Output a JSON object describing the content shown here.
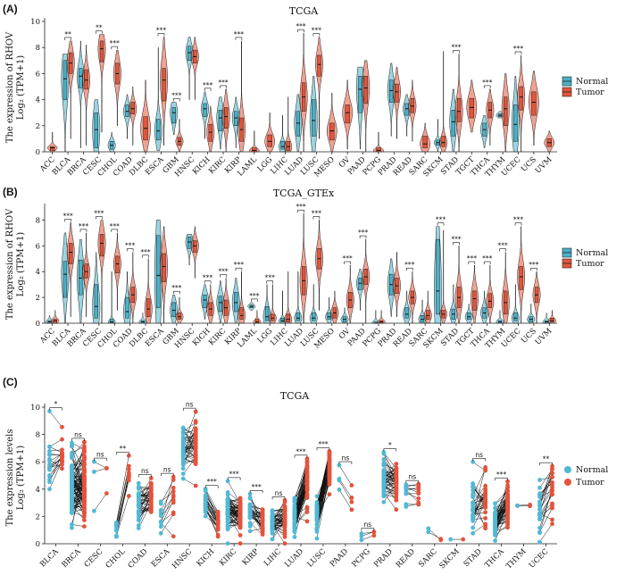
{
  "colors": {
    "normal": "#49b2c8",
    "tumor": "#e4553a",
    "normal_dot": "#51b8d6",
    "tumor_dot": "#e4533c"
  },
  "legend": {
    "normal": "Normal",
    "tumor": "Tumor"
  },
  "panels": [
    {
      "letter": "(A)",
      "title": "TCGA",
      "ylabel_line1": "The expression of RHOV",
      "ylabel_line2": "Log₂ (TPM+1)",
      "ylim": [
        0,
        10
      ],
      "yticks": [
        "0",
        "2",
        "4",
        "6",
        "8",
        "10"
      ]
    },
    {
      "letter": "(B)",
      "title": "TCGA_GTEx",
      "ylabel_line1": "The expression of RHOV",
      "ylabel_line2": "Log₂ (TPM+1)",
      "ylim": [
        0,
        9
      ],
      "yticks": [
        "0",
        "2",
        "4",
        "6",
        "8"
      ]
    },
    {
      "letter": "(C)",
      "title": "TCGA",
      "ylabel_line1": "The expression levels",
      "ylabel_line2": "Log₂ (TPM+1)",
      "ylim": [
        0,
        10
      ],
      "yticks": [
        "0",
        "2",
        "4",
        "6",
        "8",
        "10"
      ]
    }
  ],
  "chart_data": [
    {
      "type": "violin",
      "title": "TCGA",
      "ylabel": "The expression of RHOV Log2 (TPM+1)",
      "ylim": [
        0,
        10
      ],
      "legend_position": "right",
      "categories": [
        "ACC",
        "BLCA",
        "BRCA",
        "CESC",
        "CHOL",
        "COAD",
        "DLBC",
        "ESCA",
        "GBM",
        "HNSC",
        "KICH",
        "KIRC",
        "KIRP",
        "LAML",
        "LGG",
        "LIHC",
        "LUAD",
        "LUSC",
        "MESO",
        "OV",
        "PAAD",
        "PCPG",
        "PRAD",
        "READ",
        "SARC",
        "SKCM",
        "STAD",
        "TGCT",
        "THCA",
        "THYM",
        "UCEC",
        "UCS",
        "UVM"
      ],
      "significance": [
        "",
        "**",
        "",
        "**",
        "***",
        "",
        "",
        "***",
        "***",
        "",
        "***",
        "***",
        "***",
        "",
        "",
        "",
        "***",
        "***",
        "",
        "",
        "",
        "",
        "",
        "",
        "",
        "",
        "***",
        "",
        "***",
        "",
        "***",
        "",
        ""
      ],
      "series": [
        {
          "name": "Normal",
          "median": [
            null,
            5.6,
            5.8,
            1.7,
            0.5,
            3.1,
            null,
            1.6,
            3.0,
            7.6,
            3.3,
            2.6,
            2.6,
            null,
            null,
            0.4,
            2.2,
            2.4,
            null,
            null,
            4.8,
            null,
            4.7,
            3.3,
            null,
            0.7,
            2.3,
            null,
            1.7,
            2.8,
            2.1,
            null,
            null
          ],
          "q1": [
            null,
            4.0,
            4.9,
            0.3,
            0.2,
            2.7,
            null,
            0.9,
            2.2,
            7.0,
            2.7,
            1.6,
            2.0,
            null,
            null,
            0.2,
            1.2,
            1.2,
            null,
            null,
            3.0,
            null,
            3.8,
            2.8,
            null,
            0.5,
            1.2,
            null,
            1.2,
            2.7,
            0.8,
            null,
            null
          ],
          "q3": [
            null,
            7.0,
            6.4,
            3.0,
            0.8,
            3.6,
            null,
            2.5,
            3.4,
            8.1,
            3.7,
            3.2,
            3.1,
            null,
            null,
            0.8,
            3.1,
            4.0,
            null,
            null,
            5.8,
            null,
            5.5,
            3.7,
            null,
            0.9,
            3.2,
            null,
            2.2,
            2.9,
            3.6,
            null,
            null
          ],
          "min": [
            null,
            0.0,
            0.3,
            0.0,
            0.0,
            1.0,
            null,
            0.1,
            1.3,
            4.0,
            1.0,
            0.2,
            0.3,
            null,
            null,
            0.0,
            0.0,
            0.0,
            null,
            null,
            0.2,
            null,
            1.2,
            1.2,
            null,
            0.0,
            0.0,
            null,
            0.3,
            2.6,
            0.0,
            null,
            null
          ],
          "max": [
            null,
            7.5,
            8.5,
            4.0,
            1.5,
            4.4,
            null,
            8.0,
            3.8,
            8.8,
            4.6,
            4.2,
            4.2,
            null,
            null,
            2.8,
            4.4,
            5.8,
            null,
            null,
            6.5,
            null,
            6.8,
            4.4,
            null,
            2.5,
            4.8,
            null,
            2.8,
            3.1,
            5.8,
            null,
            null
          ]
        },
        {
          "name": "Tumor",
          "median": [
            0.3,
            6.8,
            5.5,
            7.9,
            6.0,
            3.3,
            1.8,
            5.5,
            0.8,
            7.3,
            1.5,
            2.7,
            1.7,
            0.1,
            0.8,
            0.4,
            4.2,
            6.7,
            1.6,
            3.0,
            4.9,
            0.1,
            4.6,
            3.5,
            0.6,
            0.7,
            3.1,
            3.4,
            3.2,
            3.3,
            4.2,
            3.8,
            0.7
          ],
          "q1": [
            0.1,
            6.0,
            4.8,
            6.9,
            5.2,
            2.9,
            0.9,
            3.9,
            0.5,
            6.8,
            0.8,
            1.8,
            0.8,
            0.0,
            0.4,
            0.1,
            3.1,
            5.8,
            0.9,
            2.2,
            3.7,
            0.0,
            3.8,
            3.0,
            0.3,
            0.4,
            2.3,
            2.6,
            2.6,
            2.0,
            3.2,
            2.8,
            0.4
          ],
          "q3": [
            0.4,
            7.6,
            6.3,
            8.5,
            6.8,
            3.8,
            2.7,
            6.4,
            1.1,
            7.8,
            2.1,
            3.4,
            2.6,
            0.3,
            1.3,
            0.8,
            5.3,
            7.4,
            2.2,
            3.6,
            5.8,
            0.3,
            5.2,
            4.1,
            1.2,
            1.2,
            4.1,
            4.1,
            3.8,
            4.2,
            5.0,
            4.6,
            1.0
          ],
          "min": [
            0.0,
            1.0,
            0.5,
            1.5,
            2.0,
            0.5,
            0.0,
            0.5,
            0.0,
            4.0,
            0.0,
            0.0,
            0.0,
            0.0,
            0.0,
            0.0,
            0.0,
            1.0,
            0.0,
            0.2,
            0.0,
            0.0,
            1.0,
            0.8,
            0.0,
            0.0,
            0.0,
            1.5,
            0.5,
            0.0,
            0.0,
            0.5,
            0.0
          ],
          "max": [
            1.5,
            8.5,
            8.2,
            9.0,
            7.8,
            5.0,
            5.5,
            8.8,
            2.5,
            8.8,
            3.5,
            4.8,
            8.5,
            1.6,
            3.0,
            4.2,
            9.1,
            8.8,
            4.5,
            5.5,
            7.0,
            1.5,
            6.5,
            5.5,
            2.2,
            7.7,
            7.5,
            5.5,
            4.8,
            6.0,
            7.4,
            6.2,
            1.6
          ]
        }
      ]
    },
    {
      "type": "violin",
      "title": "TCGA_GTEx",
      "ylabel": "The expression of RHOV Log2 (TPM+1)",
      "ylim": [
        0,
        9
      ],
      "legend_position": "right",
      "categories": [
        "ACC",
        "BLCA",
        "BRCA",
        "CESC",
        "CHOL",
        "COAD",
        "DLBC",
        "ESCA",
        "GBM",
        "HNSC",
        "KICH",
        "KIRC",
        "KIRP",
        "LAML",
        "LGG",
        "LIHC",
        "LUAD",
        "LUSC",
        "MESO",
        "OV",
        "PAAD",
        "PCPG",
        "PRAD",
        "READ",
        "SARC",
        "SKCM",
        "STAD",
        "TGCT",
        "THCA",
        "THYM",
        "UCEC",
        "UCS",
        "UVM"
      ],
      "significance": [
        "",
        "***",
        "***",
        "***",
        "***",
        "***",
        "***",
        "",
        "***",
        "",
        "***",
        "***",
        "***",
        "***",
        "***",
        "",
        "***",
        "***",
        "",
        "***",
        "***",
        "",
        "",
        "***",
        "",
        "***",
        "***",
        "***",
        "***",
        "***",
        "***",
        "***",
        ""
      ],
      "series": [
        {
          "name": "Normal",
          "median": [
            0.1,
            3.8,
            3.5,
            1.3,
            0.1,
            0.9,
            0.1,
            3.7,
            1.0,
            6.3,
            1.8,
            1.6,
            1.6,
            1.3,
            0.5,
            0.2,
            0.4,
            0.4,
            0.5,
            0.3,
            3.1,
            0.0,
            3.0,
            0.7,
            0.3,
            2.5,
            0.7,
            0.5,
            0.8,
            0.1,
            0.4,
            0.3,
            0.1
          ],
          "q1": [
            0.0,
            2.0,
            2.2,
            0.4,
            0.0,
            0.4,
            0.0,
            1.2,
            0.5,
            5.8,
            1.2,
            0.9,
            0.9,
            1.2,
            0.2,
            0.1,
            0.2,
            0.2,
            0.3,
            0.1,
            2.6,
            0.0,
            2.2,
            0.4,
            0.1,
            0.7,
            0.3,
            0.3,
            0.4,
            0.0,
            0.2,
            0.1,
            0.0
          ],
          "q3": [
            0.2,
            4.8,
            4.9,
            3.0,
            0.3,
            2.0,
            0.2,
            6.8,
            1.6,
            6.7,
            2.2,
            2.1,
            2.4,
            1.4,
            1.3,
            0.4,
            0.8,
            0.8,
            0.8,
            0.5,
            3.5,
            0.1,
            3.8,
            1.2,
            0.6,
            6.5,
            1.1,
            0.8,
            1.2,
            0.2,
            0.8,
            0.5,
            0.2
          ],
          "min": [
            0.0,
            0.0,
            0.0,
            0.0,
            0.0,
            0.0,
            0.0,
            0.0,
            0.0,
            4.5,
            0.3,
            0.0,
            0.0,
            1.0,
            0.0,
            0.0,
            0.0,
            0.0,
            0.0,
            0.0,
            1.0,
            0.0,
            0.5,
            0.0,
            0.0,
            0.0,
            0.0,
            0.0,
            0.0,
            0.0,
            0.0,
            0.0,
            0.0
          ],
          "max": [
            0.6,
            7.0,
            6.5,
            5.5,
            4.0,
            4.0,
            0.8,
            8.0,
            2.2,
            6.9,
            3.0,
            3.3,
            3.5,
            1.6,
            3.0,
            2.5,
            4.0,
            3.0,
            2.0,
            1.2,
            4.2,
            1.0,
            5.0,
            2.5,
            1.8,
            7.5,
            3.0,
            1.5,
            2.5,
            1.0,
            3.0,
            1.5,
            0.8
          ]
        },
        {
          "name": "Tumor",
          "median": [
            0.2,
            5.5,
            4.0,
            6.2,
            4.6,
            2.2,
            1.1,
            4.4,
            0.5,
            6.0,
            1.1,
            1.2,
            0.6,
            0.1,
            0.4,
            0.3,
            3.3,
            5.0,
            0.8,
            1.8,
            3.6,
            0.1,
            2.9,
            2.0,
            0.6,
            0.7,
            2.0,
            1.9,
            1.7,
            1.6,
            3.6,
            2.2,
            0.2
          ],
          "q1": [
            0.0,
            4.6,
            3.5,
            5.2,
            3.9,
            1.6,
            0.5,
            3.2,
            0.3,
            5.5,
            0.6,
            0.6,
            0.3,
            0.0,
            0.2,
            0.1,
            2.2,
            4.2,
            0.4,
            1.2,
            3.0,
            0.0,
            2.3,
            1.5,
            0.3,
            0.4,
            1.2,
            1.0,
            1.2,
            0.7,
            2.6,
            1.6,
            0.1
          ],
          "q3": [
            0.3,
            6.2,
            4.6,
            6.9,
            5.2,
            2.8,
            1.9,
            5.4,
            0.8,
            6.4,
            1.6,
            1.8,
            1.2,
            0.3,
            0.7,
            0.7,
            4.4,
            5.8,
            1.2,
            2.4,
            4.2,
            0.2,
            3.5,
            2.5,
            1.0,
            1.0,
            2.8,
            2.5,
            2.3,
            2.5,
            4.4,
            2.8,
            0.4
          ],
          "min": [
            0.0,
            0.5,
            0.5,
            0.0,
            1.0,
            0.0,
            0.0,
            0.0,
            0.0,
            3.5,
            0.0,
            0.0,
            0.0,
            0.0,
            0.0,
            0.0,
            0.0,
            1.0,
            0.0,
            0.0,
            0.0,
            0.0,
            0.5,
            0.0,
            0.0,
            0.0,
            0.0,
            0.0,
            0.0,
            0.0,
            0.0,
            0.0,
            0.0
          ],
          "max": [
            1.0,
            7.8,
            7.0,
            8.0,
            7.0,
            5.5,
            5.0,
            7.5,
            2.0,
            7.5,
            3.0,
            3.5,
            4.0,
            1.0,
            3.0,
            4.0,
            8.5,
            8.0,
            2.5,
            4.5,
            6.5,
            1.0,
            5.5,
            4.0,
            2.5,
            7.2,
            6.0,
            4.5,
            4.5,
            5.5,
            7.5,
            4.0,
            1.0
          ]
        }
      ]
    },
    {
      "type": "paired_scatter",
      "title": "TCGA",
      "ylabel": "The expression levels Log2 (TPM+1)",
      "ylim": [
        0,
        10
      ],
      "legend_position": "right",
      "categories": [
        "BLCA",
        "BRCA",
        "CESC",
        "CHOL",
        "COAD",
        "ESCA",
        "HNSC",
        "KICH",
        "KIRC",
        "KIRP",
        "LIHC",
        "LUAD",
        "LUSC",
        "PAAD",
        "PCPG",
        "PRAD",
        "READ",
        "SARC",
        "SKCM",
        "STAD",
        "THCA",
        "THYM",
        "UCEC"
      ],
      "significance": [
        "*",
        "ns",
        "ns",
        "**",
        "ns",
        "ns",
        "ns",
        "***",
        "***",
        "***",
        "ns",
        "***",
        "***",
        "ns",
        "ns",
        "*",
        "ns",
        "",
        "",
        "ns",
        "***",
        "",
        "**"
      ],
      "series": [
        {
          "name": "Normal",
          "n": [
            19,
            110,
            3,
            9,
            41,
            11,
            43,
            25,
            72,
            32,
            50,
            58,
            49,
            4,
            3,
            52,
            10,
            2,
            1,
            32,
            58,
            2,
            23
          ],
          "center": [
            6.0,
            4.0,
            4.0,
            1.0,
            3.0,
            2.0,
            7.0,
            3.0,
            2.5,
            2.5,
            1.5,
            2.0,
            2.0,
            5.0,
            0.6,
            4.8,
            3.8,
            1.0,
            0.4,
            3.0,
            1.5,
            2.8,
            2.5
          ],
          "spread": [
            2.5,
            2.5,
            2.0,
            1.0,
            1.5,
            1.2,
            1.5,
            1.0,
            1.2,
            1.2,
            1.2,
            1.2,
            1.2,
            1.5,
            0.4,
            1.5,
            0.8,
            0.6,
            0.1,
            2.0,
            1.0,
            0.1,
            2.0
          ]
        },
        {
          "name": "Tumor",
          "n": [
            19,
            110,
            3,
            9,
            41,
            11,
            43,
            25,
            72,
            32,
            50,
            58,
            49,
            4,
            3,
            52,
            10,
            2,
            1,
            32,
            58,
            2,
            23
          ],
          "center": [
            6.8,
            4.0,
            5.5,
            5.0,
            3.5,
            3.5,
            7.5,
            1.5,
            2.2,
            1.5,
            1.8,
            4.5,
            5.5,
            3.5,
            0.8,
            4.7,
            3.5,
            0.3,
            0.4,
            3.2,
            3.0,
            2.8,
            4.0
          ],
          "spread": [
            1.5,
            2.5,
            2.0,
            1.8,
            1.5,
            2.5,
            1.5,
            0.8,
            1.2,
            1.2,
            1.5,
            2.0,
            1.8,
            2.0,
            0.5,
            1.5,
            0.8,
            0.3,
            0.1,
            2.2,
            1.5,
            0.1,
            2.2
          ]
        }
      ]
    }
  ]
}
